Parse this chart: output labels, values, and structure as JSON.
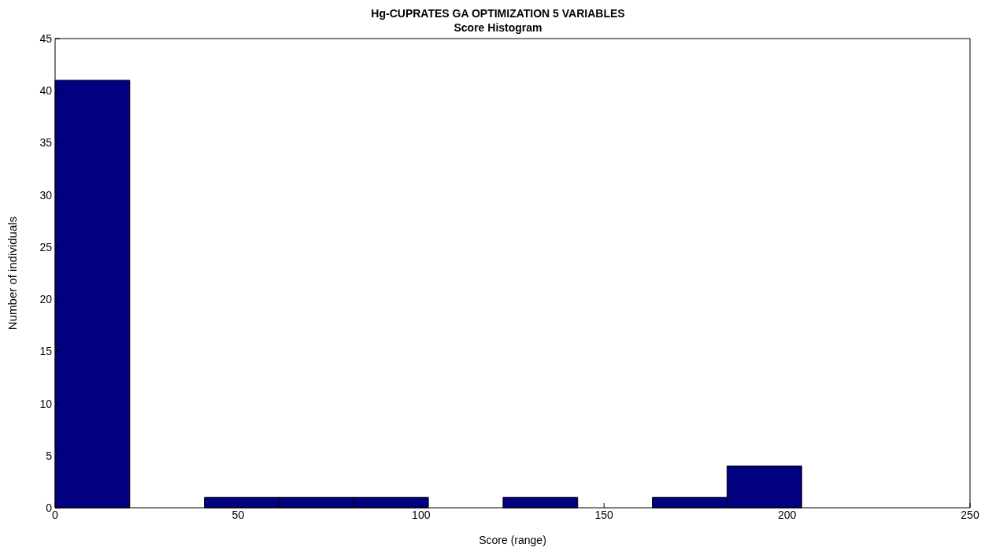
{
  "chart_data": {
    "type": "histogram",
    "title": "Hg-CUPRATES GA OPTIMIZATION 5 VARIABLES",
    "subtitle": "Score Histogram",
    "xlabel": "Score (range)",
    "ylabel": "Number of individuals",
    "bins": [
      0,
      20.4,
      40.8,
      61.2,
      81.6,
      102,
      122.4,
      142.8,
      163.2,
      183.6,
      204
    ],
    "values": [
      41,
      0,
      1,
      1,
      1,
      0,
      1,
      0,
      1,
      4
    ],
    "color": "#000080",
    "xlim": [
      0,
      250
    ],
    "xticks": [
      0,
      50,
      100,
      150,
      200,
      250
    ],
    "ylim": [
      0,
      45
    ],
    "yticks": [
      0,
      5,
      10,
      15,
      20,
      25,
      30,
      35,
      40,
      45
    ],
    "grid": false
  }
}
